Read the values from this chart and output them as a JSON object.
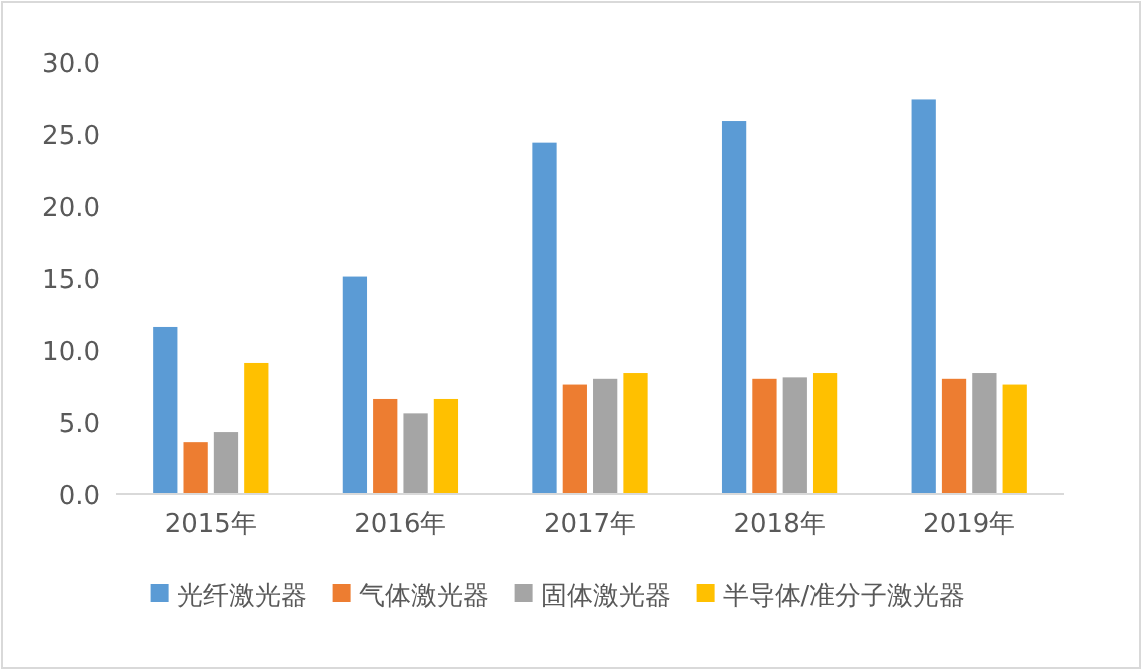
{
  "chart_data": {
    "type": "bar",
    "categories": [
      "2015年",
      "2016年",
      "2017年",
      "2018年",
      "2019年"
    ],
    "series": [
      {
        "name": "光纤激光器",
        "color": "#5b9bd5",
        "values": [
          11.6,
          15.1,
          24.4,
          25.9,
          27.4
        ]
      },
      {
        "name": "气体激光器",
        "color": "#ed7d31",
        "values": [
          3.6,
          6.6,
          7.6,
          8.0,
          8.0
        ]
      },
      {
        "name": "固体激光器",
        "color": "#a5a5a5",
        "values": [
          4.3,
          5.6,
          8.0,
          8.1,
          8.4
        ]
      },
      {
        "name": "半导体/准分子激光器",
        "color": "#ffc000",
        "values": [
          9.1,
          6.6,
          8.4,
          8.4,
          7.6
        ]
      }
    ],
    "ylim": [
      0,
      30
    ],
    "yticks": [
      {
        "value": 0,
        "label": "0.0"
      },
      {
        "value": 5,
        "label": "5.0"
      },
      {
        "value": 10,
        "label": "10.0"
      },
      {
        "value": 15,
        "label": "15.0"
      },
      {
        "value": 20,
        "label": "20.0"
      },
      {
        "value": 25,
        "label": "25.0"
      },
      {
        "value": 30,
        "label": "30.0"
      }
    ],
    "legend": "bottom"
  }
}
